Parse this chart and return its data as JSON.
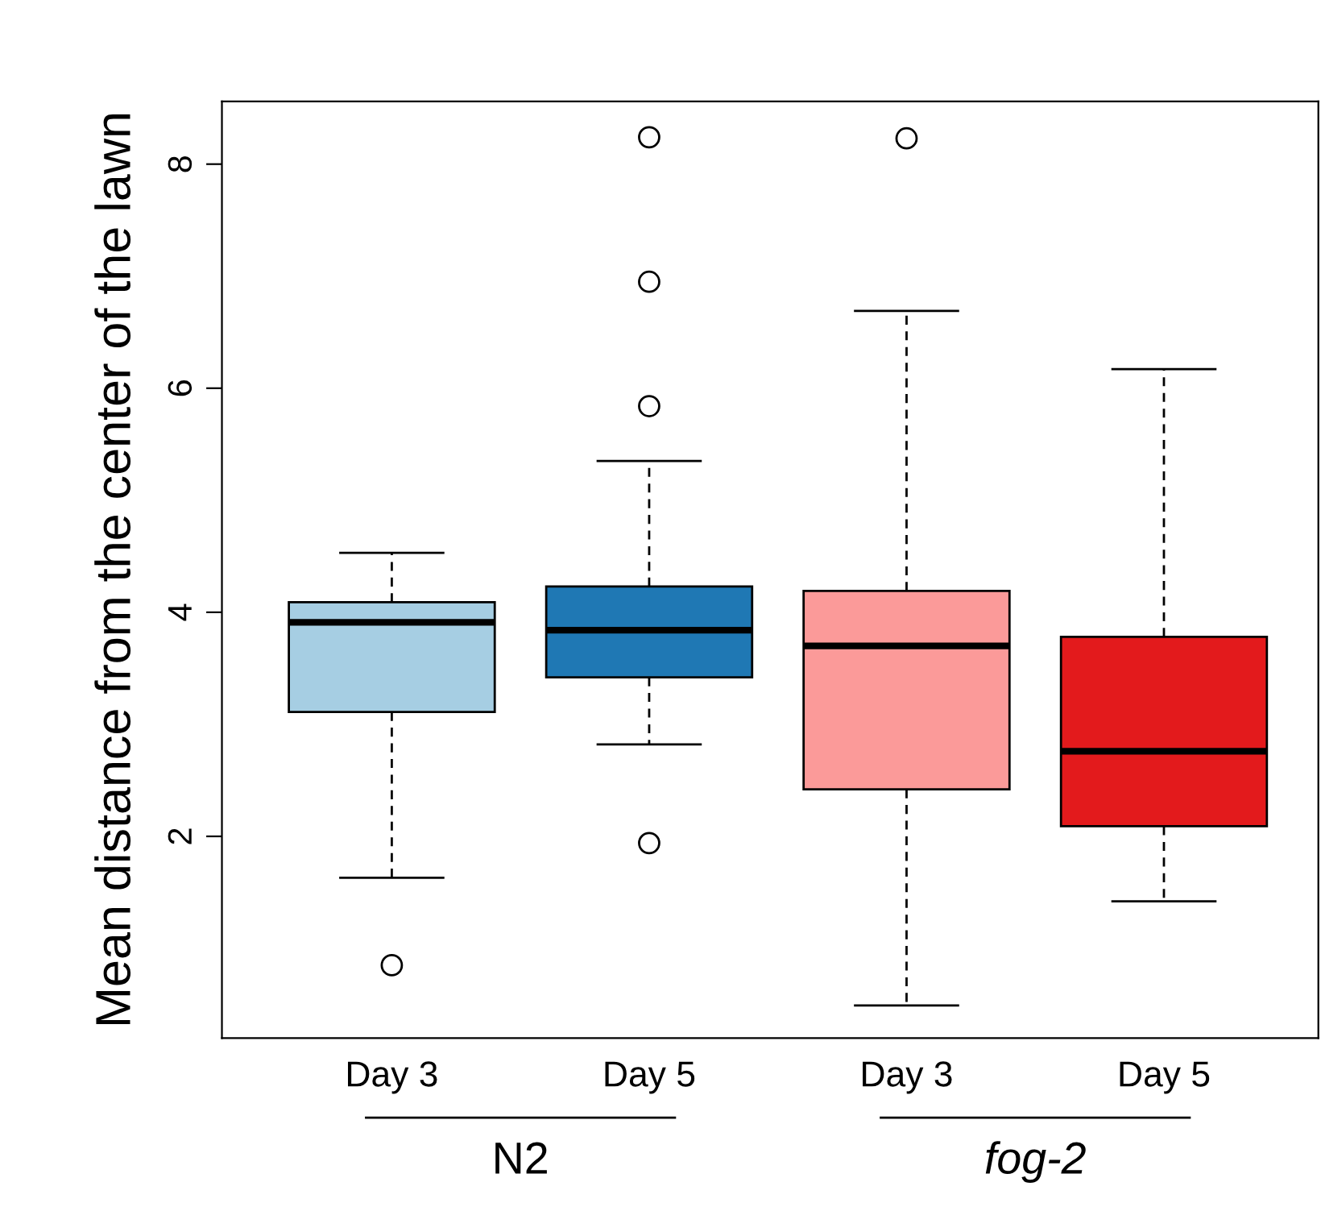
{
  "chart_data": {
    "type": "box",
    "ylabel": "Mean distance from the center of the lawn",
    "categories": [
      "Day 3",
      "Day 5",
      "Day 3",
      "Day 5"
    ],
    "colors": [
      "#a6cee3",
      "#1f78b4",
      "#fb9a99",
      "#e31a1c"
    ],
    "boxes": [
      {
        "low": 1.63,
        "q1": 3.11,
        "median": 3.91,
        "q3": 4.09,
        "high": 4.53,
        "outliers": [
          0.85
        ]
      },
      {
        "low": 2.82,
        "q1": 3.42,
        "median": 3.84,
        "q3": 4.23,
        "high": 5.35,
        "outliers": [
          1.94,
          5.84,
          6.95,
          8.24
        ]
      },
      {
        "low": 0.49,
        "q1": 2.42,
        "median": 3.7,
        "q3": 4.19,
        "high": 6.69,
        "outliers": [
          8.23
        ]
      },
      {
        "low": 1.42,
        "q1": 2.09,
        "median": 2.76,
        "q3": 3.78,
        "high": 6.17
      }
    ],
    "ylim": [
      0.2,
      8.56
    ],
    "yticks": [
      2,
      4,
      6,
      8
    ],
    "annotations": [
      "N2",
      "fog-2"
    ],
    "grid": false,
    "legend": false
  }
}
